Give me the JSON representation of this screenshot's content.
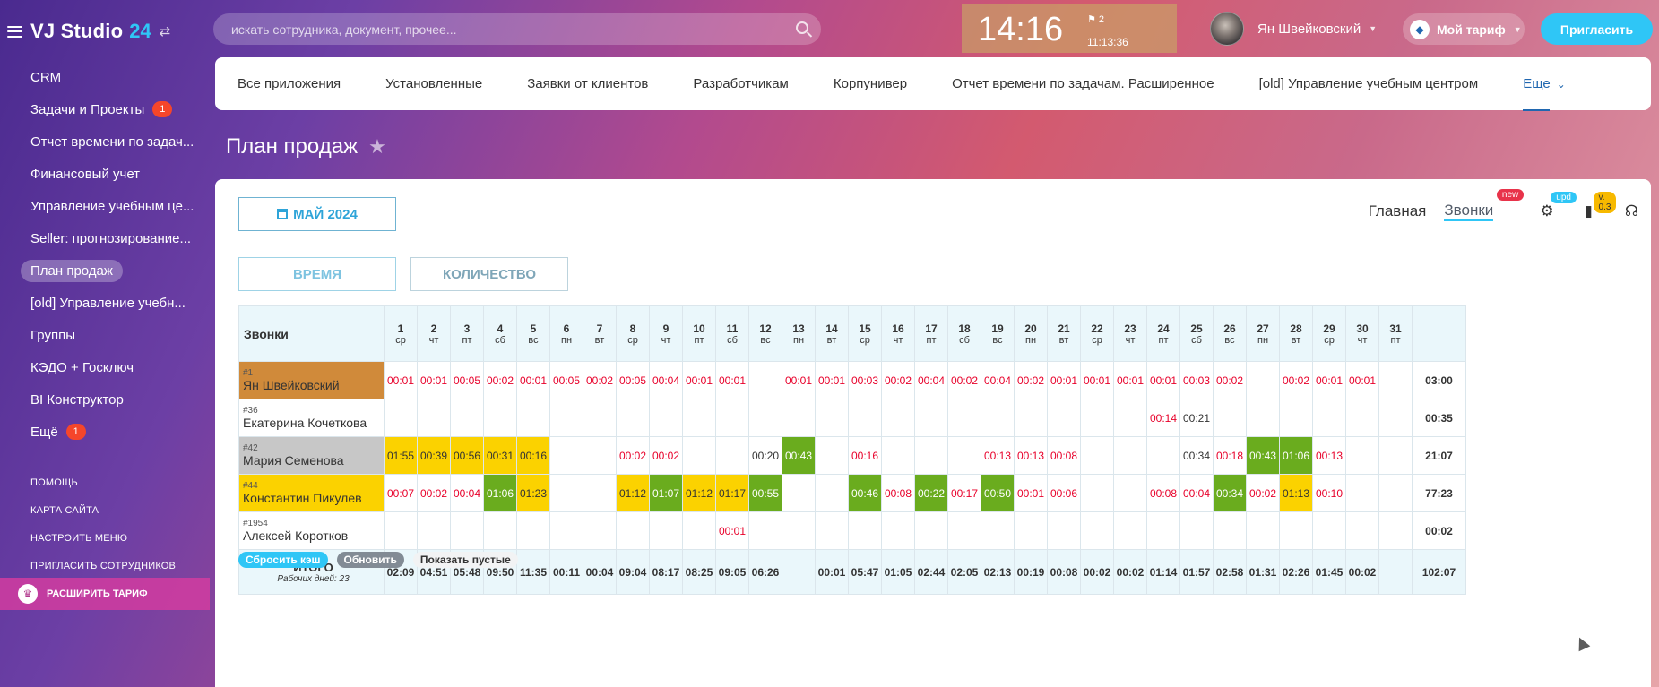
{
  "logo": {
    "name": "VJ Studio",
    "num": "24"
  },
  "sidebar": {
    "items": [
      {
        "label": "CRM",
        "badge": ""
      },
      {
        "label": "Задачи и Проекты",
        "badge": "1"
      },
      {
        "label": "Отчет времени по задач...",
        "badge": ""
      },
      {
        "label": "Финансовый учет",
        "badge": ""
      },
      {
        "label": "Управление учебным це...",
        "badge": ""
      },
      {
        "label": "Seller: прогнозирование...",
        "badge": ""
      },
      {
        "label": "План продаж",
        "badge": "",
        "active": true
      },
      {
        "label": "[old] Управление учебн...",
        "badge": ""
      },
      {
        "label": "Группы",
        "badge": ""
      },
      {
        "label": "КЭДО + Госключ",
        "badge": ""
      },
      {
        "label": "BI Конструктор",
        "badge": ""
      },
      {
        "label": "Ещё",
        "badge": "1"
      }
    ],
    "small": [
      "Помощь",
      "Карта сайта",
      "Настроить меню",
      "Пригласить сотрудников"
    ],
    "upgrade": "Расширить тариф"
  },
  "search": {
    "placeholder": "искать сотрудника, документ, прочее..."
  },
  "clock": {
    "time": "14:16",
    "flag": "2",
    "worked": "11:13:36"
  },
  "user": {
    "name": "Ян Швейковский"
  },
  "tariff": "Мой тариф",
  "invite": "Пригласить",
  "apps": [
    "Все приложения",
    "Установленные",
    "Заявки от клиентов",
    "Разработчикам",
    "Корпунивер",
    "Отчет времени по задачам. Расширенное",
    "[old] Управление учебным центром"
  ],
  "apps_more": "Еще",
  "page_title": "План продаж",
  "month": "МАЙ 2024",
  "nav": {
    "main": "Главная",
    "calls": "Звонки",
    "new": "new",
    "upd": "upd",
    "ver": "v. 0.3"
  },
  "modes": {
    "time": "ВРЕМЯ",
    "qty": "КОЛИЧЕСТВО"
  },
  "table": {
    "header": "Звонки",
    "days": [
      {
        "d": "1",
        "w": "ср"
      },
      {
        "d": "2",
        "w": "чт"
      },
      {
        "d": "3",
        "w": "пт"
      },
      {
        "d": "4",
        "w": "сб"
      },
      {
        "d": "5",
        "w": "вс"
      },
      {
        "d": "6",
        "w": "пн"
      },
      {
        "d": "7",
        "w": "вт"
      },
      {
        "d": "8",
        "w": "ср"
      },
      {
        "d": "9",
        "w": "чт"
      },
      {
        "d": "10",
        "w": "пт"
      },
      {
        "d": "11",
        "w": "сб"
      },
      {
        "d": "12",
        "w": "вс"
      },
      {
        "d": "13",
        "w": "пн"
      },
      {
        "d": "14",
        "w": "вт"
      },
      {
        "d": "15",
        "w": "ср"
      },
      {
        "d": "16",
        "w": "чт"
      },
      {
        "d": "17",
        "w": "пт"
      },
      {
        "d": "18",
        "w": "сб"
      },
      {
        "d": "19",
        "w": "вс"
      },
      {
        "d": "20",
        "w": "пн"
      },
      {
        "d": "21",
        "w": "вт"
      },
      {
        "d": "22",
        "w": "ср"
      },
      {
        "d": "23",
        "w": "чт"
      },
      {
        "d": "24",
        "w": "пт"
      },
      {
        "d": "25",
        "w": "сб"
      },
      {
        "d": "26",
        "w": "вс"
      },
      {
        "d": "27",
        "w": "пн"
      },
      {
        "d": "28",
        "w": "вт"
      },
      {
        "d": "29",
        "w": "ср"
      },
      {
        "d": "30",
        "w": "чт"
      },
      {
        "d": "31",
        "w": "пт"
      }
    ],
    "rows": [
      {
        "id": "#1",
        "name": "Ян Швейковский",
        "color": "#d08a3a",
        "total": "03:00",
        "cells": [
          [
            "00:01",
            "r"
          ],
          [
            "00:01",
            "r"
          ],
          [
            "00:05",
            "r"
          ],
          [
            "00:02",
            "r"
          ],
          [
            "00:01",
            "r"
          ],
          [
            "00:05",
            "r"
          ],
          [
            "00:02",
            "r"
          ],
          [
            "00:05",
            "r"
          ],
          [
            "00:04",
            "r"
          ],
          [
            "00:01",
            "r"
          ],
          [
            "00:01",
            "r"
          ],
          [
            "",
            ""
          ],
          [
            "00:01",
            "r"
          ],
          [
            "00:01",
            "r"
          ],
          [
            "00:03",
            "r"
          ],
          [
            "00:02",
            "r"
          ],
          [
            "00:04",
            "r"
          ],
          [
            "00:02",
            "r"
          ],
          [
            "00:04",
            "r"
          ],
          [
            "00:02",
            "r"
          ],
          [
            "00:01",
            "r"
          ],
          [
            "00:01",
            "r"
          ],
          [
            "00:01",
            "r"
          ],
          [
            "00:01",
            "r"
          ],
          [
            "00:03",
            "r"
          ],
          [
            "00:02",
            "r"
          ],
          [
            "",
            ""
          ],
          [
            "00:02",
            "r"
          ],
          [
            "00:01",
            "r"
          ],
          [
            "00:01",
            "r"
          ],
          [
            "",
            ""
          ]
        ]
      },
      {
        "id": "#36",
        "name": "Екатерина Кочеткова",
        "color": "",
        "total": "00:35",
        "cells": [
          [
            "",
            ""
          ],
          [
            "",
            ""
          ],
          [
            "",
            ""
          ],
          [
            "",
            ""
          ],
          [
            "",
            ""
          ],
          [
            "",
            ""
          ],
          [
            "",
            ""
          ],
          [
            "",
            ""
          ],
          [
            "",
            ""
          ],
          [
            "",
            ""
          ],
          [
            "",
            ""
          ],
          [
            "",
            ""
          ],
          [
            "",
            ""
          ],
          [
            "",
            ""
          ],
          [
            "",
            ""
          ],
          [
            "",
            ""
          ],
          [
            "",
            ""
          ],
          [
            "",
            ""
          ],
          [
            "",
            ""
          ],
          [
            "",
            ""
          ],
          [
            "",
            ""
          ],
          [
            "",
            ""
          ],
          [
            "",
            ""
          ],
          [
            "00:14",
            "r"
          ],
          [
            "00:21",
            "p"
          ],
          [
            "",
            ""
          ],
          [
            "",
            ""
          ],
          [
            "",
            ""
          ],
          [
            "",
            ""
          ],
          [
            "",
            ""
          ],
          [
            "",
            ""
          ]
        ]
      },
      {
        "id": "#42",
        "name": "Мария Семенова",
        "color": "#c7c7c7",
        "total": "21:07",
        "cells": [
          [
            "01:55",
            "y"
          ],
          [
            "00:39",
            "y"
          ],
          [
            "00:56",
            "y"
          ],
          [
            "00:31",
            "y"
          ],
          [
            "00:16",
            "y"
          ],
          [
            "",
            ""
          ],
          [
            "",
            ""
          ],
          [
            "00:02",
            "r"
          ],
          [
            "00:02",
            "r"
          ],
          [
            "",
            ""
          ],
          [
            "",
            ""
          ],
          [
            "00:20",
            "p"
          ],
          [
            "00:43",
            "g"
          ],
          [
            "",
            ""
          ],
          [
            "00:16",
            "r"
          ],
          [
            "",
            ""
          ],
          [
            "",
            ""
          ],
          [
            "",
            ""
          ],
          [
            "00:13",
            "r"
          ],
          [
            "00:13",
            "r"
          ],
          [
            "00:08",
            "r"
          ],
          [
            "",
            ""
          ],
          [
            "",
            ""
          ],
          [
            "",
            ""
          ],
          [
            "00:34",
            "p"
          ],
          [
            "00:18",
            "r"
          ],
          [
            "00:43",
            "g"
          ],
          [
            "01:06",
            "g"
          ],
          [
            "00:13",
            "r"
          ],
          [
            "",
            ""
          ],
          [
            "",
            ""
          ]
        ]
      },
      {
        "id": "#44",
        "name": "Константин Пикулев",
        "color": "#fbd200",
        "total": "77:23",
        "cells": [
          [
            "00:07",
            "r"
          ],
          [
            "00:02",
            "r"
          ],
          [
            "00:04",
            "r"
          ],
          [
            "01:06",
            "g"
          ],
          [
            "01:23",
            "y"
          ],
          [
            "",
            ""
          ],
          [
            "",
            ""
          ],
          [
            "01:12",
            "y"
          ],
          [
            "01:07",
            "g"
          ],
          [
            "01:12",
            "y"
          ],
          [
            "01:17",
            "y"
          ],
          [
            "00:55",
            "g"
          ],
          [
            "",
            ""
          ],
          [
            "",
            ""
          ],
          [
            "00:46",
            "g"
          ],
          [
            "00:08",
            "r"
          ],
          [
            "00:22",
            "g"
          ],
          [
            "00:17",
            "r"
          ],
          [
            "00:50",
            "g"
          ],
          [
            "00:01",
            "r"
          ],
          [
            "00:06",
            "r"
          ],
          [
            "",
            ""
          ],
          [
            "",
            ""
          ],
          [
            "00:08",
            "r"
          ],
          [
            "00:04",
            "r"
          ],
          [
            "00:34",
            "g"
          ],
          [
            "00:02",
            "r"
          ],
          [
            "01:13",
            "y"
          ],
          [
            "00:10",
            "r"
          ],
          [
            "",
            ""
          ],
          [
            "",
            ""
          ]
        ]
      },
      {
        "id": "#1954",
        "name": "Алексей Коротков",
        "color": "",
        "total": "00:02",
        "cells": [
          [
            "",
            ""
          ],
          [
            "",
            ""
          ],
          [
            "",
            ""
          ],
          [
            "",
            ""
          ],
          [
            "",
            ""
          ],
          [
            "",
            ""
          ],
          [
            "",
            ""
          ],
          [
            "",
            ""
          ],
          [
            "",
            ""
          ],
          [
            "",
            ""
          ],
          [
            "00:01",
            "r"
          ],
          [
            "",
            ""
          ],
          [
            "",
            ""
          ],
          [
            "",
            ""
          ],
          [
            "",
            ""
          ],
          [
            "",
            ""
          ],
          [
            "",
            ""
          ],
          [
            "",
            ""
          ],
          [
            "",
            ""
          ],
          [
            "",
            ""
          ],
          [
            "",
            ""
          ],
          [
            "",
            ""
          ],
          [
            "",
            ""
          ],
          [
            "",
            ""
          ],
          [
            "",
            ""
          ],
          [
            "",
            ""
          ],
          [
            "",
            ""
          ],
          [
            "",
            ""
          ],
          [
            "",
            ""
          ],
          [
            "",
            ""
          ],
          [
            "",
            ""
          ]
        ]
      }
    ],
    "summary": {
      "label": "ИТОГО",
      "sub": "Рабочих дней: 23",
      "total": "102:07",
      "values": [
        "02:09",
        "04:51",
        "05:48",
        "09:50",
        "11:35",
        "00:11",
        "00:04",
        "09:04",
        "08:17",
        "08:25",
        "09:05",
        "06:26",
        "",
        "00:01",
        "05:47",
        "01:05",
        "02:44",
        "02:05",
        "02:13",
        "00:19",
        "00:08",
        "00:02",
        "00:02",
        "01:14",
        "01:57",
        "02:58",
        "01:31",
        "02:26",
        "01:45",
        "00:02",
        ""
      ]
    }
  },
  "footer": {
    "cache": "Сбросить кэш",
    "refresh": "Обновить",
    "empty": "Показать пустые"
  }
}
